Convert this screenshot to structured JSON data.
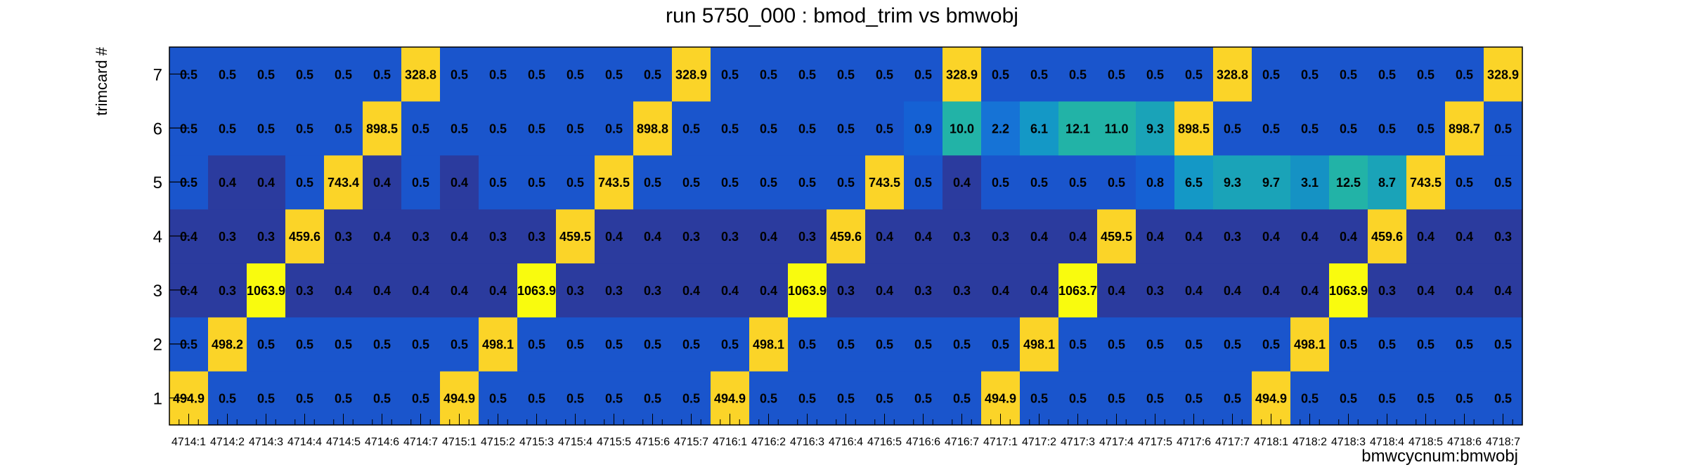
{
  "chart_data": {
    "type": "heatmap",
    "title": "run 5750_000 : bmod_trim vs bmwobj",
    "xlabel": "bmwcycnum:bmwobj",
    "ylabel": "trimcard #",
    "x_categories": [
      "4714:1",
      "4714:2",
      "4714:3",
      "4714:4",
      "4714:5",
      "4714:6",
      "4714:7",
      "4715:1",
      "4715:2",
      "4715:3",
      "4715:4",
      "4715:5",
      "4715:6",
      "4715:7",
      "4716:1",
      "4716:2",
      "4716:3",
      "4716:4",
      "4716:5",
      "4716:6",
      "4716:7",
      "4717:1",
      "4717:2",
      "4717:3",
      "4717:4",
      "4717:5",
      "4717:6",
      "4717:7",
      "4718:1",
      "4718:2",
      "4718:3",
      "4718:4",
      "4718:5",
      "4718:6",
      "4718:7"
    ],
    "y_categories": [
      "1",
      "2",
      "3",
      "4",
      "5",
      "6",
      "7"
    ],
    "values": [
      [
        "494.9",
        "0.5",
        "0.5",
        "0.5",
        "0.5",
        "0.5",
        "0.5",
        "494.9",
        "0.5",
        "0.5",
        "0.5",
        "0.5",
        "0.5",
        "0.5",
        "494.9",
        "0.5",
        "0.5",
        "0.5",
        "0.5",
        "0.5",
        "0.5",
        "494.9",
        "0.5",
        "0.5",
        "0.5",
        "0.5",
        "0.5",
        "0.5",
        "494.9",
        "0.5",
        "0.5",
        "0.5",
        "0.5",
        "0.5",
        "0.5"
      ],
      [
        "0.5",
        "498.2",
        "0.5",
        "0.5",
        "0.5",
        "0.5",
        "0.5",
        "0.5",
        "498.1",
        "0.5",
        "0.5",
        "0.5",
        "0.5",
        "0.5",
        "0.5",
        "498.1",
        "0.5",
        "0.5",
        "0.5",
        "0.5",
        "0.5",
        "0.5",
        "498.1",
        "0.5",
        "0.5",
        "0.5",
        "0.5",
        "0.5",
        "0.5",
        "498.1",
        "0.5",
        "0.5",
        "0.5",
        "0.5",
        "0.5"
      ],
      [
        "0.4",
        "0.3",
        "1063.9",
        "0.3",
        "0.4",
        "0.4",
        "0.4",
        "0.4",
        "0.4",
        "1063.9",
        "0.3",
        "0.3",
        "0.3",
        "0.4",
        "0.4",
        "0.4",
        "1063.9",
        "0.3",
        "0.4",
        "0.3",
        "0.3",
        "0.4",
        "0.4",
        "1063.7",
        "0.4",
        "0.3",
        "0.4",
        "0.4",
        "0.4",
        "0.4",
        "1063.9",
        "0.3",
        "0.4",
        "0.4",
        "0.4"
      ],
      [
        "0.4",
        "0.3",
        "0.3",
        "459.6",
        "0.3",
        "0.4",
        "0.3",
        "0.4",
        "0.3",
        "0.3",
        "459.5",
        "0.4",
        "0.4",
        "0.3",
        "0.3",
        "0.4",
        "0.3",
        "459.6",
        "0.4",
        "0.4",
        "0.3",
        "0.3",
        "0.4",
        "0.4",
        "459.5",
        "0.4",
        "0.4",
        "0.3",
        "0.4",
        "0.4",
        "0.4",
        "459.6",
        "0.4",
        "0.4",
        "0.3"
      ],
      [
        "0.5",
        "0.4",
        "0.4",
        "0.5",
        "743.4",
        "0.4",
        "0.5",
        "0.4",
        "0.5",
        "0.5",
        "0.5",
        "743.5",
        "0.5",
        "0.5",
        "0.5",
        "0.5",
        "0.5",
        "0.5",
        "743.5",
        "0.5",
        "0.4",
        "0.5",
        "0.5",
        "0.5",
        "0.5",
        "0.8",
        "6.5",
        "9.3",
        "9.7",
        "3.1",
        "12.5",
        "8.7",
        "743.5",
        "0.5",
        "0.5"
      ],
      [
        "0.5",
        "0.5",
        "0.5",
        "0.5",
        "0.5",
        "898.5",
        "0.5",
        "0.5",
        "0.5",
        "0.5",
        "0.5",
        "0.5",
        "898.8",
        "0.5",
        "0.5",
        "0.5",
        "0.5",
        "0.5",
        "0.5",
        "0.9",
        "10.0",
        "2.2",
        "6.1",
        "12.1",
        "11.0",
        "9.3",
        "898.5",
        "0.5",
        "0.5",
        "0.5",
        "0.5",
        "0.5",
        "0.5",
        "898.7",
        "0.5"
      ],
      [
        "0.5",
        "0.5",
        "0.5",
        "0.5",
        "0.5",
        "0.5",
        "328.8",
        "0.5",
        "0.5",
        "0.5",
        "0.5",
        "0.5",
        "0.5",
        "328.9",
        "0.5",
        "0.5",
        "0.5",
        "0.5",
        "0.5",
        "0.5",
        "328.9",
        "0.5",
        "0.5",
        "0.5",
        "0.5",
        "0.5",
        "0.5",
        "328.8",
        "0.5",
        "0.5",
        "0.5",
        "0.5",
        "0.5",
        "0.5",
        "328.9"
      ]
    ],
    "grid": false,
    "legend": "none",
    "colormap": "parula",
    "colors": {
      "low": "#2b3b9e",
      "base": "#1a55cc",
      "mid": "#1592c4",
      "teal": "#22b3a7",
      "high": "#fbd428",
      "max": "#f9fb0e"
    }
  }
}
